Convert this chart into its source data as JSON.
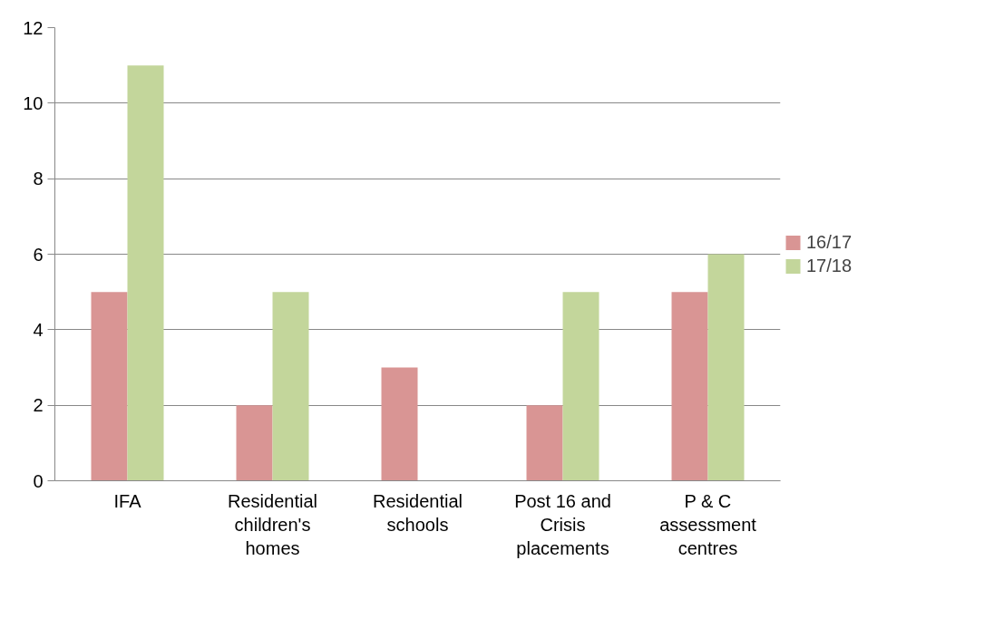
{
  "chart_data": {
    "type": "bar",
    "categories": [
      "IFA",
      "Residential children's homes",
      "Residential schools",
      "Post 16 and Crisis placements",
      "P & C assessment centres"
    ],
    "series": [
      {
        "name": "16/17",
        "color": "#d99594",
        "values": [
          5,
          2,
          3,
          2,
          5
        ]
      },
      {
        "name": "17/18",
        "color": "#c3d69b",
        "values": [
          11,
          5,
          0,
          5,
          6
        ]
      }
    ],
    "ylim": [
      0,
      12
    ],
    "yticks": [
      0,
      2,
      4,
      6,
      8,
      10,
      12
    ],
    "grid": "y",
    "legend": "right"
  }
}
